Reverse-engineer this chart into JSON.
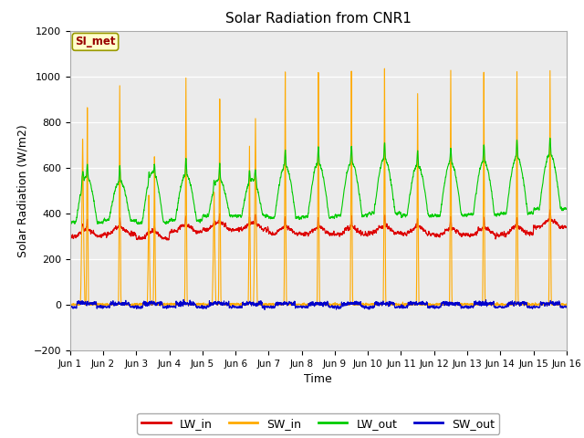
{
  "title": "Solar Radiation from CNR1",
  "xlabel": "Time",
  "ylabel": "Solar Radiation (W/m2)",
  "ylim": [
    -200,
    1200
  ],
  "yticks": [
    -200,
    0,
    200,
    400,
    600,
    800,
    1000,
    1200
  ],
  "xtick_labels": [
    "Jun 1",
    "Jun 2",
    "Jun 3",
    "Jun 4",
    "Jun 5",
    "Jun 6",
    "Jun 7",
    "Jun 8",
    "Jun 9",
    "Jun 10",
    "Jun 11",
    "Jun 12",
    "Jun 13",
    "Jun 14",
    "Jun 15",
    "Jun 16"
  ],
  "colors": {
    "LW_in": "#dd0000",
    "SW_in": "#ffaa00",
    "LW_out": "#00cc00",
    "SW_out": "#0000cc"
  },
  "legend_label": "SI_met",
  "legend_box_color": "#ffffcc",
  "legend_text_color": "#990000",
  "bg_plot": "#ebebeb",
  "bg_outer": "#ffffff",
  "grid_color": "#ffffff",
  "linewidth": 0.8,
  "figsize": [
    6.4,
    4.8
  ],
  "dpi": 100
}
